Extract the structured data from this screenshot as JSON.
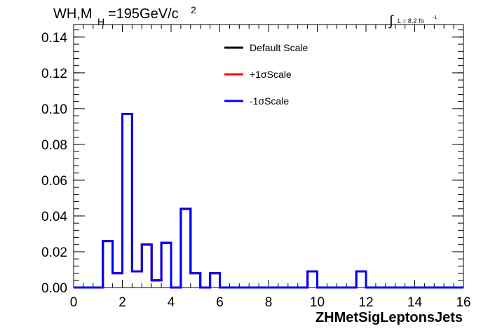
{
  "chart_data": {
    "type": "line",
    "title_main": "WH,M",
    "title_sub": "H",
    "title_value": "=195GeV/c",
    "title_sup": "2",
    "lumi_integral": "∫",
    "lumi_label": "L = 8.2 fb",
    "lumi_sup": "-1",
    "xlabel": "ZHMetSigLeptonsJets",
    "ylabel": "",
    "xlim": [
      0,
      16
    ],
    "ylim": [
      0,
      0.147
    ],
    "x_ticks": [
      0,
      2,
      4,
      6,
      8,
      10,
      12,
      14,
      16
    ],
    "x_tick_labels": [
      "0",
      "2",
      "4",
      "6",
      "8",
      "10",
      "12",
      "14",
      "16"
    ],
    "y_ticks": [
      0,
      0.02,
      0.04,
      0.06,
      0.08,
      0.1,
      0.12,
      0.14
    ],
    "y_tick_labels": [
      "0.00",
      "0.02",
      "0.04",
      "0.06",
      "0.08",
      "0.10",
      "0.12",
      "0.14"
    ],
    "legend_position": "top-center",
    "bin_edges": [
      0,
      1.2,
      1.6,
      2.0,
      2.4,
      2.8,
      3.2,
      3.6,
      4.0,
      4.4,
      4.8,
      5.2,
      5.6,
      6.0,
      6.4,
      9.6,
      10.0,
      11.6,
      12.0,
      16.0
    ],
    "series": [
      {
        "name": "Default Scale",
        "color": "#000000",
        "values": [
          0,
          0.026,
          0.008,
          0.097,
          0.009,
          0.024,
          0.004,
          0.025,
          0,
          0.044,
          0.008,
          0,
          0.008,
          0,
          0,
          0.009,
          0,
          0.009,
          0
        ]
      },
      {
        "name": "+1σScale",
        "color": "#ff0000",
        "values": [
          0,
          0.026,
          0.008,
          0.097,
          0.009,
          0.024,
          0.004,
          0.025,
          0,
          0.044,
          0.008,
          0,
          0.008,
          0,
          0,
          0.009,
          0,
          0.009,
          0
        ]
      },
      {
        "name": "-1σScale",
        "color": "#0000ff",
        "values": [
          0,
          0.026,
          0.008,
          0.097,
          0.009,
          0.024,
          0.004,
          0.025,
          0,
          0.044,
          0.008,
          0,
          0.008,
          0,
          0,
          0.009,
          0,
          0.009,
          0
        ]
      }
    ]
  }
}
